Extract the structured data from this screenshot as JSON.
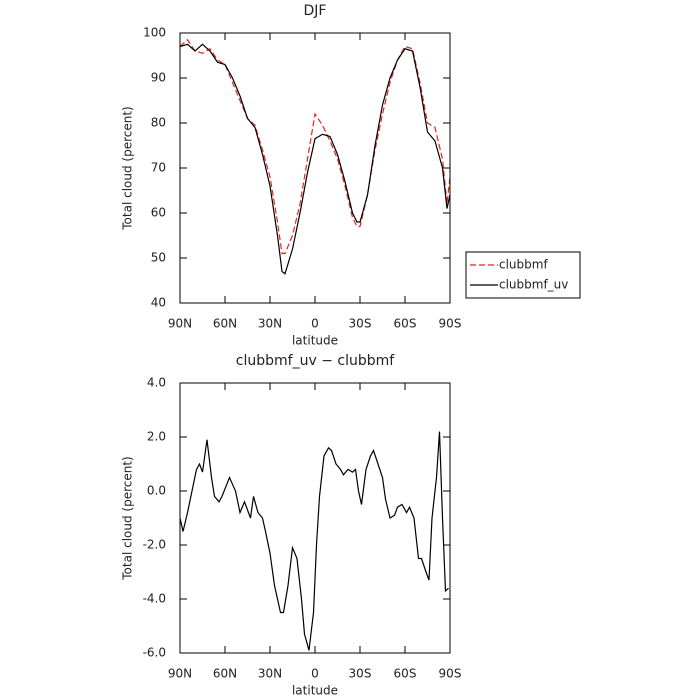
{
  "chart_data": [
    {
      "type": "line",
      "title": "DJF",
      "x_label": "latitude",
      "y_label": "Total cloud (percent)",
      "xlim": [
        90,
        -90
      ],
      "xticks": [
        {
          "value": 90,
          "label": "90N"
        },
        {
          "value": 60,
          "label": "60N"
        },
        {
          "value": 30,
          "label": "30N"
        },
        0,
        {
          "value": -30,
          "label": "30S"
        },
        {
          "value": -60,
          "label": "60S"
        },
        {
          "value": -90,
          "label": "90S"
        }
      ],
      "ylim": [
        40,
        100
      ],
      "yticks": [
        40,
        50,
        60,
        70,
        80,
        90,
        100
      ],
      "legend": "right",
      "x": [
        90,
        85,
        80,
        75,
        70,
        65,
        60,
        55,
        50,
        45,
        40,
        35,
        30,
        25,
        22,
        20,
        15,
        10,
        5,
        0,
        -5,
        -10,
        -15,
        -20,
        -25,
        -28,
        -30,
        -35,
        -40,
        -45,
        -50,
        -55,
        -60,
        -65,
        -70,
        -75,
        -80,
        -85,
        -88,
        -90
      ],
      "series": [
        {
          "name": "clubbmf",
          "color": "#e8231f",
          "dash": true,
          "values": [
            97,
            98.5,
            96,
            95.5,
            96.5,
            94,
            93,
            89,
            85,
            81,
            79.5,
            74,
            68,
            58,
            51,
            51,
            55,
            62,
            72,
            82,
            79.5,
            76,
            72,
            66,
            59,
            57,
            57,
            64,
            74,
            82,
            89,
            94,
            97,
            96.5,
            89,
            80,
            79,
            72,
            62,
            68
          ]
        },
        {
          "name": "clubbmf_uv",
          "color": "#000000",
          "dash": false,
          "values": [
            97,
            97.5,
            96,
            97.5,
            96,
            93.5,
            93,
            90,
            86,
            81,
            79,
            73,
            66,
            55,
            47,
            46.5,
            52,
            60,
            69,
            76.5,
            77.5,
            77,
            73,
            67,
            60,
            58,
            58,
            64,
            75,
            84,
            90,
            94,
            96.5,
            96,
            88,
            78,
            76,
            70,
            61,
            64
          ]
        }
      ]
    },
    {
      "type": "line",
      "title": "clubbmf_uv − clubbmf",
      "x_label": "latitude",
      "y_label": "Total cloud (percent)",
      "xlim": [
        90,
        -90
      ],
      "xticks": [
        {
          "value": 90,
          "label": "90N"
        },
        {
          "value": 60,
          "label": "60N"
        },
        {
          "value": 30,
          "label": "30N"
        },
        0,
        {
          "value": -30,
          "label": "30S"
        },
        {
          "value": -60,
          "label": "60S"
        },
        {
          "value": -90,
          "label": "90S"
        }
      ],
      "ylim": [
        -6,
        4
      ],
      "yticks": [
        {
          "value": -6,
          "label": "-6.0"
        },
        {
          "value": -4,
          "label": "-4.0"
        },
        {
          "value": -2,
          "label": "-2.0"
        },
        {
          "value": 0,
          "label": "0.0"
        },
        {
          "value": 2,
          "label": "2.0"
        },
        {
          "value": 4,
          "label": "4.0"
        }
      ],
      "x": [
        90,
        88,
        85,
        82,
        79,
        77,
        75,
        72,
        69,
        67,
        64,
        62,
        57,
        53,
        50,
        47,
        43,
        41,
        38,
        35,
        33,
        30,
        27,
        23,
        21,
        18,
        15,
        12,
        9,
        7,
        4,
        1,
        -1,
        -3,
        -6,
        -9,
        -11,
        -14,
        -17,
        -19,
        -22,
        -25,
        -27,
        -29,
        -31,
        -34,
        -37,
        -39,
        -42,
        -45,
        -47,
        -50,
        -53,
        -55,
        -58,
        -61,
        -63,
        -66,
        -69,
        -71,
        -74,
        -76,
        -78,
        -81,
        -83,
        -85,
        -87,
        -89
      ],
      "series": [
        {
          "color": "#000000",
          "dash": false,
          "values": [
            -1.0,
            -1.5,
            -0.8,
            0.0,
            0.8,
            1.0,
            0.7,
            1.9,
            0.5,
            -0.2,
            -0.4,
            -0.2,
            0.5,
            0.0,
            -0.8,
            -0.4,
            -1.0,
            -0.2,
            -0.8,
            -1.0,
            -1.5,
            -2.3,
            -3.5,
            -4.5,
            -4.5,
            -3.5,
            -2.1,
            -2.5,
            -4.0,
            -5.3,
            -5.9,
            -4.5,
            -2.0,
            -0.2,
            1.3,
            1.6,
            1.5,
            1.0,
            0.8,
            0.6,
            0.8,
            0.7,
            0.8,
            0.0,
            -0.5,
            0.8,
            1.3,
            1.5,
            1.0,
            0.5,
            -0.3,
            -1.0,
            -0.9,
            -0.6,
            -0.5,
            -0.8,
            -0.6,
            -1.0,
            -2.5,
            -2.5,
            -3.0,
            -3.3,
            -1.0,
            0.5,
            2.2,
            -1.0,
            -3.7,
            -3.6
          ]
        }
      ]
    }
  ]
}
